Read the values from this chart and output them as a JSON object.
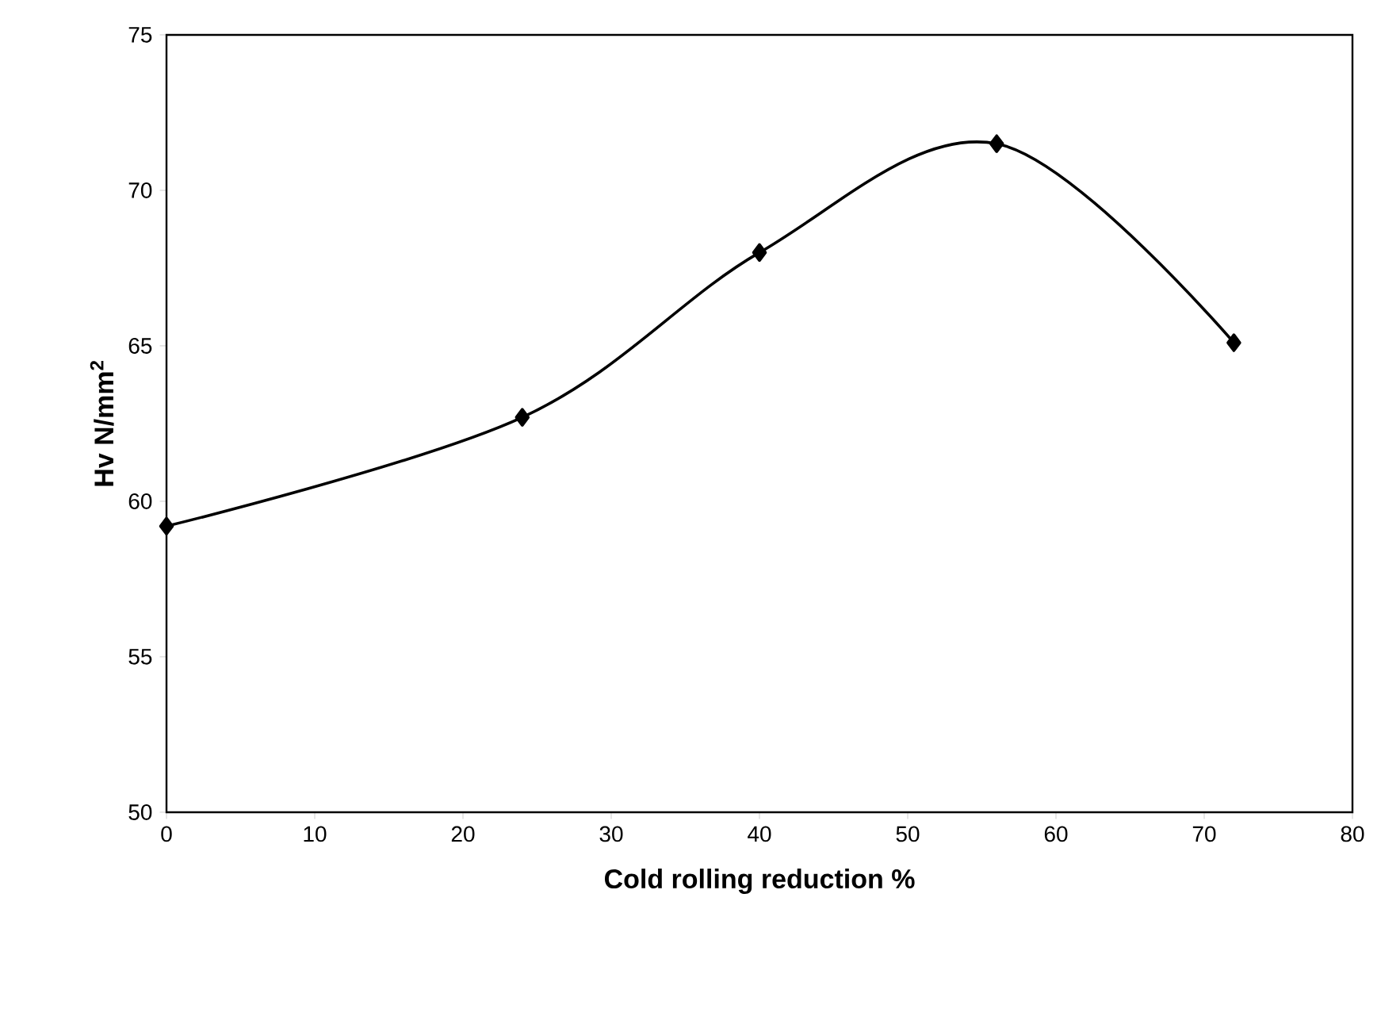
{
  "chart_data": {
    "type": "line",
    "xlabel": "Cold rolling reduction %",
    "ylabel": "**Hv  N/mm$^{2}$**",
    "x": [
      0,
      24,
      40,
      56,
      72
    ],
    "series": [
      {
        "color": "#000000",
        "values": [
          59.2,
          62.7,
          68.0,
          71.5,
          65.1
        ]
      }
    ],
    "xlim": [
      0,
      80
    ],
    "xticks": [
      0,
      10,
      20,
      30,
      40,
      50,
      60,
      70,
      80
    ],
    "ylim": [
      50,
      75
    ],
    "yticks": [
      50,
      55,
      60,
      65,
      70,
      75
    ],
    "grid": false,
    "marker": "diamond",
    "line_style": "solid"
  }
}
